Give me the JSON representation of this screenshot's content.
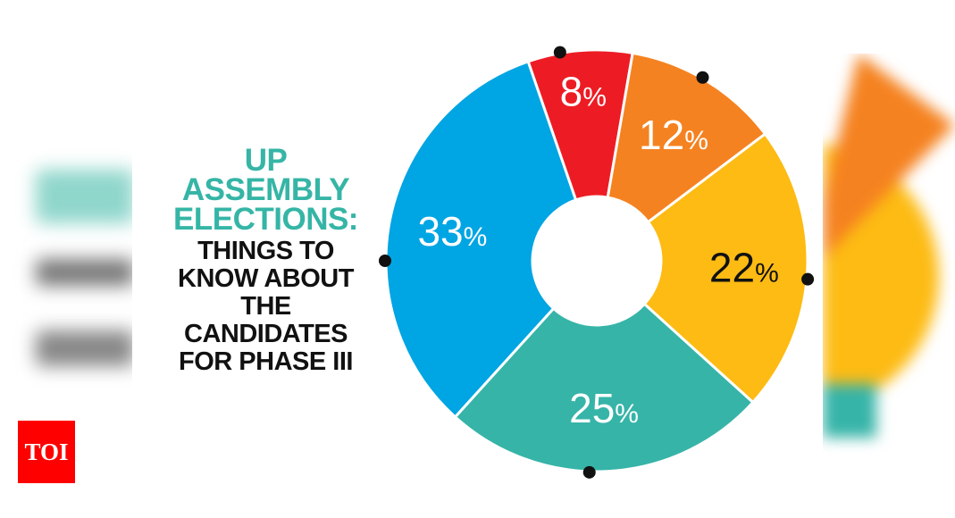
{
  "title": {
    "highlight_lines": [
      "UP",
      "ASSEMBLY",
      "ELECTIONS:"
    ],
    "lines": [
      "THINGS TO",
      "KNOW ABOUT",
      "THE",
      "CANDIDATES",
      "FOR PHASE III"
    ]
  },
  "logo": {
    "text": "TOI",
    "color": "#ff0000"
  },
  "colors": {
    "accent": "#35b5a6"
  },
  "chart_data": {
    "type": "pie",
    "style": "donut",
    "title": "",
    "slices": [
      {
        "label": "8%",
        "value": 8,
        "color": "#ed1c24",
        "label_color": "#ffffff"
      },
      {
        "label": "12%",
        "value": 12,
        "color": "#f58220",
        "label_color": "#ffffff"
      },
      {
        "label": "22%",
        "value": 22,
        "color": "#fdbb13",
        "label_color": "#111111"
      },
      {
        "label": "25%",
        "value": 25,
        "color": "#36b4a8",
        "label_color": "#ffffff"
      },
      {
        "label": "33%",
        "value": 33,
        "color": "#00a5e3",
        "label_color": "#ffffff"
      }
    ]
  }
}
